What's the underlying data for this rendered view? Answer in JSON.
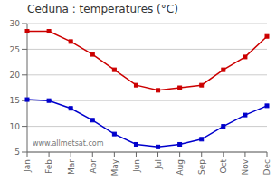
{
  "chart_data": {
    "type": "line",
    "title": "Ceduna : temperatures (°C)",
    "categories": [
      "Jan",
      "Feb",
      "Mar",
      "Apr",
      "May",
      "Jun",
      "Jul",
      "Aug",
      "Sep",
      "Oct",
      "Nov",
      "Dec"
    ],
    "series": [
      {
        "color": "#cc0000",
        "values": [
          28.5,
          28.5,
          26.5,
          24.0,
          21.0,
          18.0,
          17.0,
          17.5,
          18.0,
          21.0,
          23.5,
          27.5
        ]
      },
      {
        "color": "#0000cc",
        "values": [
          15.2,
          15.0,
          13.5,
          11.2,
          8.5,
          6.5,
          6.0,
          6.5,
          7.5,
          10.0,
          12.2,
          14.0
        ]
      }
    ],
    "ylim": [
      5,
      30
    ],
    "yticks": [
      5,
      10,
      15,
      20,
      25,
      30
    ],
    "grid": true,
    "marker": "square",
    "annotations": [
      "www.allmetsat.com"
    ]
  }
}
